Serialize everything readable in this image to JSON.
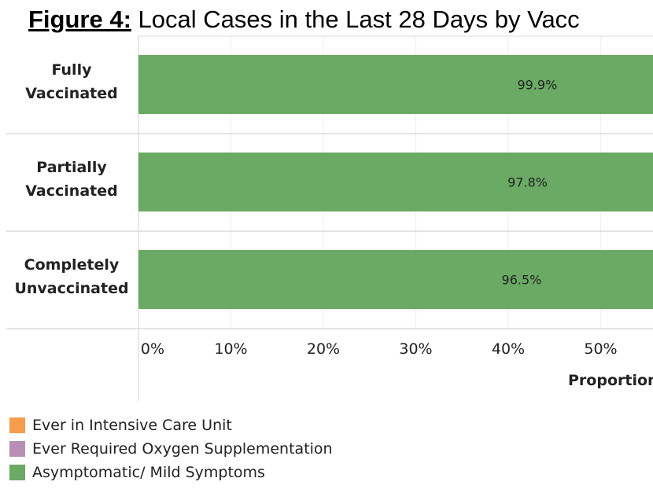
{
  "title": {
    "figure": "Figure 4:",
    "text": " Local Cases in the Last 28 Days by Vacc"
  },
  "chart_data": {
    "type": "bar",
    "orientation": "horizontal",
    "categories": [
      [
        "Fully",
        "Vaccinated"
      ],
      [
        "Partially",
        "Vaccinated"
      ],
      [
        "Completely",
        "Unvaccinated"
      ]
    ],
    "series": [
      {
        "name": "Asymptomatic/ Mild Symptoms",
        "color": "#6aaa64",
        "values": [
          99.9,
          97.8,
          96.5
        ],
        "labels": [
          "99.9%",
          "97.8%",
          "96.5%"
        ]
      }
    ],
    "xlim": [
      0,
      100
    ],
    "xticks": [
      0,
      10,
      20,
      30,
      40,
      50
    ],
    "xtick_labels": [
      "0%",
      "10%",
      "20%",
      "30%",
      "40%",
      "50%"
    ],
    "xlabel": "Proportion",
    "grid": true,
    "legend_position": "bottom-left"
  },
  "legend": [
    {
      "label": "Ever in Intensive Care Unit",
      "color": "#f59d4c"
    },
    {
      "label": "Ever Required Oxygen Supplementation",
      "color": "#b98eb4"
    },
    {
      "label": "Asymptomatic/ Mild Symptoms",
      "color": "#6aaa64"
    }
  ]
}
